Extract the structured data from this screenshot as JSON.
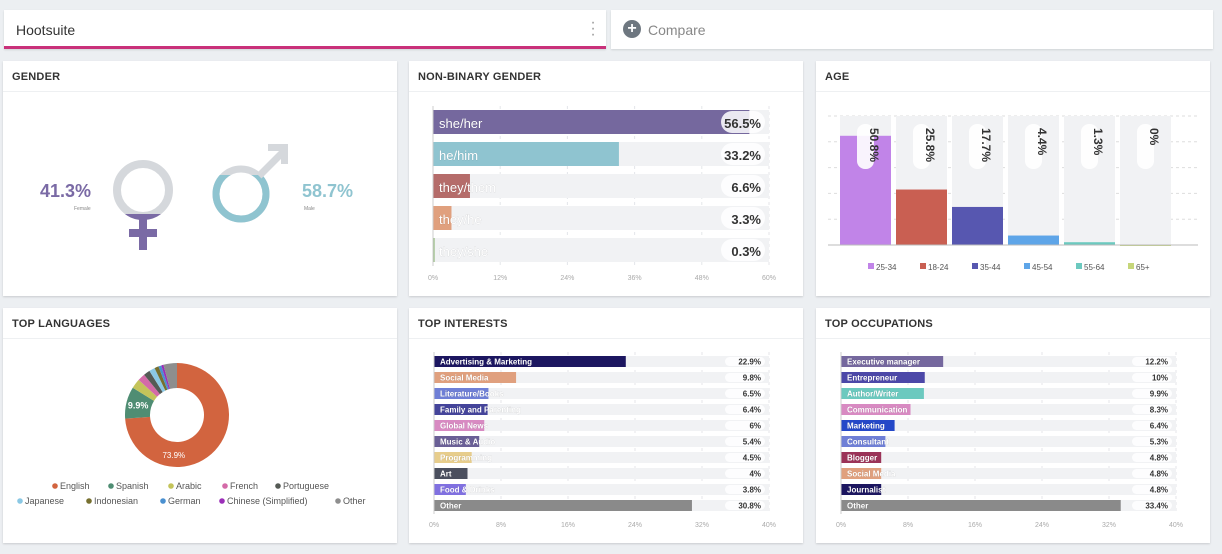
{
  "tabs": {
    "active": "Hootsuite",
    "compare": "Compare"
  },
  "colors": {
    "accent": "#c9317a",
    "female": "#7a6aa5",
    "male": "#8fc4d0"
  },
  "gender": {
    "title": "GENDER",
    "female_pct": "41.3%",
    "female_label": "Female",
    "male_pct": "58.7%",
    "male_label": "Male",
    "female_value": 41.3,
    "male_value": 58.7
  },
  "nonbinary": {
    "title": "NON-BINARY GENDER",
    "chart_data": {
      "type": "bar",
      "orientation": "horizontal",
      "xlim": [
        0,
        60
      ],
      "ticks": [
        "0%",
        "12%",
        "24%",
        "36%",
        "48%",
        "60%"
      ],
      "categories": [
        "she/her",
        "he/him",
        "they/them",
        "they/he",
        "they/she"
      ],
      "values": [
        56.5,
        33.2,
        6.6,
        3.3,
        0.3
      ],
      "labels": [
        "56.5%",
        "33.2%",
        "6.6%",
        "3.3%",
        "0.3%"
      ],
      "colors": [
        "#75689e",
        "#8fc4d0",
        "#b56c6a",
        "#e0a07e",
        "#9dbf8a"
      ]
    }
  },
  "age": {
    "title": "AGE",
    "chart_data": {
      "type": "bar",
      "ylim": [
        0,
        60
      ],
      "grid": true,
      "legend": "bottom",
      "categories": [
        "25-34",
        "18-24",
        "35-44",
        "45-54",
        "55-64",
        "65+"
      ],
      "values": [
        50.8,
        25.8,
        17.7,
        4.4,
        1.3,
        0
      ],
      "labels": [
        "50.8%",
        "25.8%",
        "17.7%",
        "4.4%",
        "1.3%",
        "0%"
      ],
      "colors": [
        "#c184e8",
        "#c95f52",
        "#5757b0",
        "#5ea5e8",
        "#6cc9bf",
        "#c6d67a"
      ]
    }
  },
  "languages": {
    "title": "TOP LANGUAGES",
    "chart_data": {
      "type": "pie",
      "donut": true,
      "legend": "bottom",
      "categories": [
        "English",
        "Spanish",
        "Arabic",
        "French",
        "Portuguese",
        "Japanese",
        "Indonesian",
        "German",
        "Chinese (Simplified)",
        "Other"
      ],
      "values": [
        73.9,
        9.9,
        3,
        2.3,
        2,
        1.8,
        1.3,
        0.9,
        0.7,
        4.2
      ],
      "slice_labels": {
        "English": "73.9%",
        "Spanish": "9.9%"
      },
      "colors": [
        "#d2643f",
        "#4f8d73",
        "#c4c45a",
        "#d46aa8",
        "#555a55",
        "#8bc8e4",
        "#77702f",
        "#4a90d0",
        "#9b2fb8",
        "#8e8e8e"
      ]
    }
  },
  "interests": {
    "title": "TOP INTERESTS",
    "chart_data": {
      "type": "bar",
      "orientation": "horizontal",
      "xlim": [
        0,
        40
      ],
      "ticks": [
        "0%",
        "8%",
        "16%",
        "24%",
        "32%",
        "40%"
      ],
      "categories": [
        "Advertising & Marketing",
        "Social Media",
        "Literature/Books",
        "Family and Parenting",
        "Global News",
        "Music & Audio",
        "Programming",
        "Art",
        "Food & Drinks",
        "Other"
      ],
      "values": [
        22.9,
        9.8,
        6.5,
        6.4,
        6,
        5.4,
        4.5,
        4,
        3.8,
        30.8
      ],
      "labels": [
        "22.9%",
        "9.8%",
        "6.5%",
        "6.4%",
        "6%",
        "5.4%",
        "4.5%",
        "4%",
        "3.8%",
        "30.8%"
      ],
      "colors": [
        "#1c1660",
        "#e0a07e",
        "#6f7fd6",
        "#44449a",
        "#d88ac2",
        "#6a5f96",
        "#e7cd8c",
        "#4b4f5e",
        "#8070e0",
        "#8a8a8a"
      ]
    }
  },
  "occupations": {
    "title": "TOP OCCUPATIONS",
    "chart_data": {
      "type": "bar",
      "orientation": "horizontal",
      "xlim": [
        0,
        40
      ],
      "ticks": [
        "0%",
        "8%",
        "16%",
        "24%",
        "32%",
        "40%"
      ],
      "categories": [
        "Executive manager",
        "Entrepreneur",
        "Author/Writer",
        "Communication",
        "Marketing",
        "Consultant",
        "Blogger",
        "Social Media",
        "Journalist",
        "Other"
      ],
      "values": [
        12.2,
        10,
        9.9,
        8.3,
        6.4,
        5.3,
        4.8,
        4.8,
        4.8,
        33.4
      ],
      "labels": [
        "12.2%",
        "10%",
        "9.9%",
        "8.3%",
        "6.4%",
        "5.3%",
        "4.8%",
        "4.8%",
        "4.8%",
        "33.4%"
      ],
      "colors": [
        "#75689e",
        "#4c48a8",
        "#6cc9bf",
        "#d88ac2",
        "#2448c8",
        "#6f7fd6",
        "#9b3358",
        "#e0a07e",
        "#1c1660",
        "#8a8a8a"
      ]
    }
  }
}
